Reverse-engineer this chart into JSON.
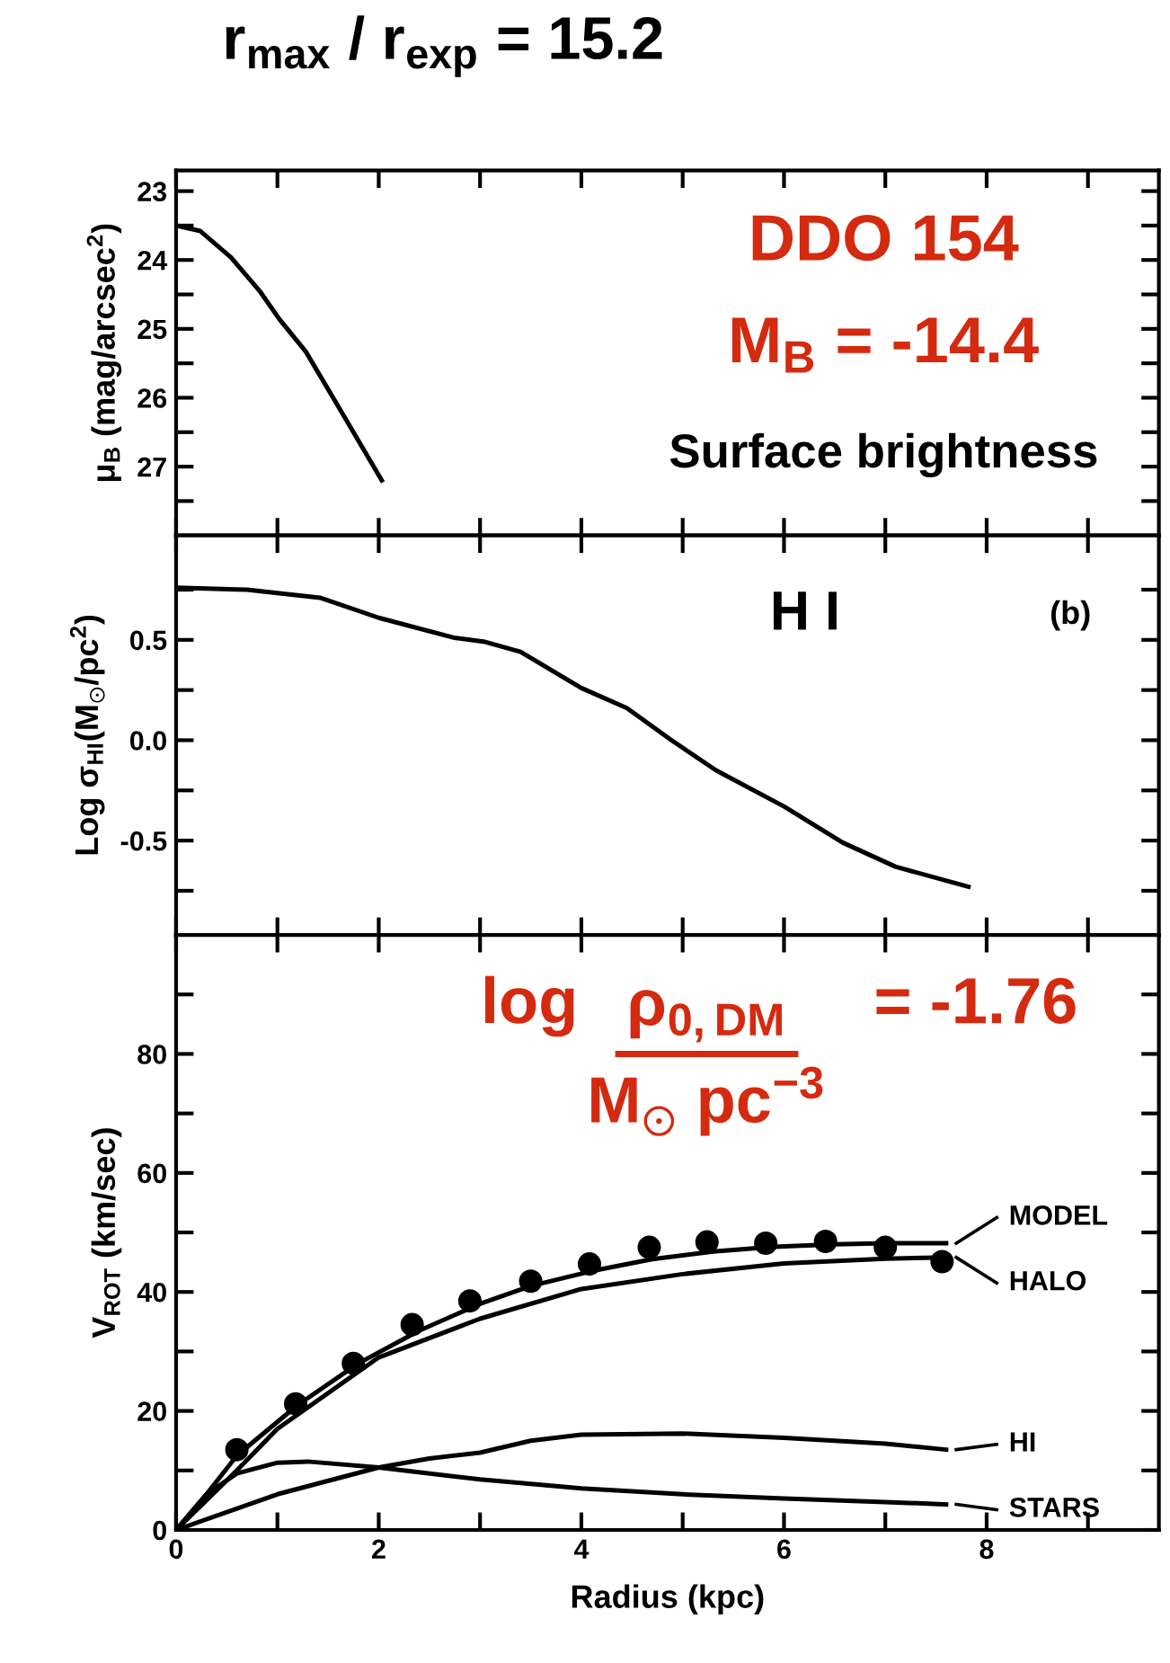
{
  "chart_data": [
    {
      "type": "line",
      "title": "r$_{max}$ / r$_{exp}$ = 15.2",
      "ylabel": "μ$_{B}$ (mag/arcsec$^{2}$)",
      "annotations": [
        "DDO 154",
        "M$_{B}$ = -14.4",
        "Surface brightness"
      ],
      "x": [
        0,
        0.24,
        0.54,
        0.83,
        1.02,
        1.28,
        1.57,
        2.03
      ],
      "series": [
        {
          "color": "#000000",
          "values": [
            23.5,
            23.58,
            23.96,
            24.46,
            24.86,
            25.33,
            26.05,
            27.2
          ]
        }
      ],
      "xlim": [
        0,
        9.7
      ],
      "xticks": [
        0,
        1,
        2,
        3,
        4,
        5,
        6,
        7,
        8,
        9
      ],
      "ylim": [
        28.0,
        22.7
      ],
      "yticks": [
        23,
        {
          "value": 23.5,
          "label": null
        },
        24,
        {
          "value": 24.5,
          "label": null
        },
        25,
        {
          "value": 25.5,
          "label": null
        },
        26,
        {
          "value": 26.5,
          "label": null
        },
        27,
        {
          "value": 27.5,
          "label": null
        }
      ],
      "tick_labels": "y",
      "grid": false,
      "marker": "none",
      "line_style": "solid"
    },
    {
      "type": "line",
      "ylabel": "Log σ$_{HI}$(M$_{⊙}$/pc$^{2}$)",
      "annotations": [
        "H I",
        "(b)"
      ],
      "x": [
        0,
        0.7,
        1.42,
        2.0,
        2.75,
        3.05,
        3.4,
        4.0,
        4.45,
        4.89,
        5.33,
        6.0,
        6.58,
        7.1,
        7.82
      ],
      "series": [
        {
          "color": "#000000",
          "values": [
            0.76,
            0.75,
            0.71,
            0.61,
            0.51,
            0.49,
            0.44,
            0.26,
            0.16,
            0.0,
            -0.15,
            -0.33,
            -0.51,
            -0.63,
            -0.73
          ]
        }
      ],
      "xlim": [
        0,
        9.7
      ],
      "xticks": [
        0,
        1,
        2,
        3,
        4,
        5,
        6,
        7,
        8,
        9
      ],
      "ylim": [
        -0.97,
        1.02
      ],
      "yticks": [
        {
          "value": -0.75,
          "label": null
        },
        -0.5,
        {
          "value": -0.25,
          "label": null
        },
        {
          "value": 0,
          "label": "0.0"
        },
        {
          "value": 0.25,
          "label": null
        },
        0.5,
        {
          "value": 0.75,
          "label": null
        }
      ],
      "tick_labels": "y",
      "grid": false,
      "marker": "none",
      "line_style": "solid"
    },
    {
      "type": "line",
      "xlabel": "Radius (kpc)",
      "ylabel": "V$_{ROT}$ (km/sec)",
      "annotations": [
        "log",
        "ρ$_{0,DM}$",
        "M$_{⊙}$ pc$^{−3}$",
        "= -1.76"
      ],
      "series": [
        {
          "type": "scatter",
          "color": "#000000",
          "marker": "circle",
          "x": [
            0.6,
            1.18,
            1.75,
            2.33,
            2.9,
            3.5,
            4.08,
            4.67,
            5.24,
            5.82,
            6.41,
            7.0,
            7.56
          ],
          "values": [
            13.5,
            21.2,
            28.0,
            34.5,
            38.5,
            41.8,
            44.7,
            47.5,
            48.4,
            48.2,
            48.5,
            47.5,
            45.1
          ]
        },
        {
          "name": "MODEL",
          "color": "#000000",
          "x": [
            0,
            0.3,
            0.6,
            1.2,
            1.8,
            2.4,
            3.0,
            3.5,
            4.1,
            4.7,
            5.3,
            5.9,
            6.5,
            7.0,
            7.6
          ],
          "values": [
            0,
            6,
            12.5,
            21,
            28,
            33.5,
            38,
            41,
            43.5,
            45.5,
            46.8,
            47.6,
            48,
            48.2,
            48.2
          ]
        },
        {
          "name": "HALO",
          "color": "#000000",
          "x": [
            0,
            0.3,
            0.6,
            1.0,
            2.0,
            3.0,
            4.0,
            5.0,
            6.0,
            7.0,
            7.6
          ],
          "values": [
            0,
            5,
            10,
            17,
            29,
            35.5,
            40.5,
            43,
            44.8,
            45.6,
            45.8
          ]
        },
        {
          "name": "HI",
          "color": "#000000",
          "x": [
            0,
            1.0,
            2.0,
            2.5,
            3.0,
            3.5,
            4.0,
            5.0,
            6.0,
            7.0,
            7.6
          ],
          "values": [
            0,
            6,
            10.5,
            12,
            13,
            15,
            16,
            16.2,
            15.5,
            14.5,
            13.5
          ]
        },
        {
          "name": "STARS",
          "color": "#000000",
          "x": [
            0,
            0.3,
            0.6,
            1.0,
            1.3,
            2.0,
            3.0,
            4.0,
            5.0,
            6.0,
            7.0,
            7.6
          ],
          "values": [
            0,
            6,
            9.5,
            11.3,
            11.5,
            10.5,
            8.5,
            7,
            6,
            5.3,
            4.7,
            4.3
          ]
        }
      ],
      "xlim": [
        0,
        9.7
      ],
      "xticks": [
        0,
        {
          "value": 1,
          "label": null
        },
        2,
        {
          "value": 3,
          "label": null
        },
        4,
        {
          "value": 5,
          "label": null
        },
        6,
        {
          "value": 7,
          "label": null
        },
        8,
        {
          "value": 9,
          "label": null
        }
      ],
      "ylim": [
        0,
        100
      ],
      "yticks": [
        0,
        {
          "value": 10,
          "label": null
        },
        20,
        {
          "value": 30,
          "label": null
        },
        40,
        {
          "value": 50,
          "label": null
        },
        60,
        {
          "value": 70,
          "label": null
        },
        80,
        {
          "value": 90,
          "label": null
        }
      ],
      "grid": false,
      "legend": "right",
      "marker": "none",
      "line_style": "solid"
    }
  ]
}
